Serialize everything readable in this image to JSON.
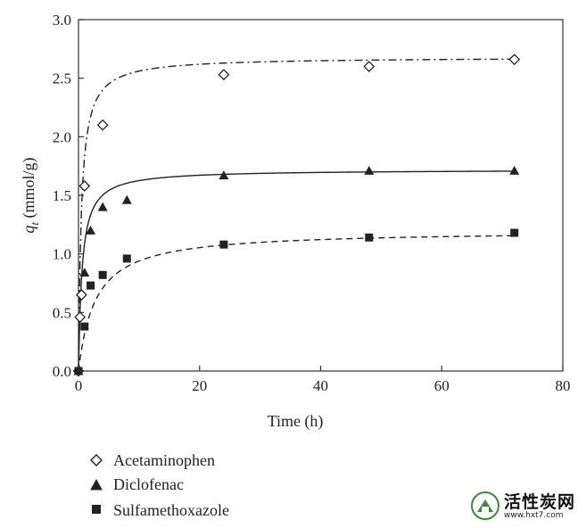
{
  "chart_data": {
    "type": "scatter",
    "xlabel": "Time (h)",
    "ylabel_main": "q",
    "ylabel_sub": "t",
    "ylabel_unit": " (mmol/g)",
    "xlim": [
      0,
      80
    ],
    "ylim": [
      0,
      3.0
    ],
    "xticks": [
      "0",
      "20",
      "40",
      "60",
      "80"
    ],
    "yticks": [
      "0.0",
      "0.5",
      "1.0",
      "1.5",
      "2.0",
      "2.5",
      "3.0"
    ],
    "legend_position": "bottom-left, below plot",
    "grid": false,
    "series": [
      {
        "name": "Acetaminophen",
        "marker": "open-diamond",
        "line_style": "dash-dot",
        "x": [
          0,
          0.25,
          0.5,
          1,
          4,
          24,
          48,
          72
        ],
        "y": [
          0.0,
          0.46,
          0.65,
          1.58,
          2.1,
          2.53,
          2.6,
          2.66
        ],
        "fit": {
          "qe": 2.68,
          "k": 0.8
        }
      },
      {
        "name": "Diclofenac",
        "marker": "filled-triangle",
        "line_style": "solid",
        "x": [
          0,
          1,
          2,
          4,
          8,
          24,
          48,
          72
        ],
        "y": [
          0.0,
          0.84,
          1.2,
          1.4,
          1.46,
          1.67,
          1.71,
          1.71
        ],
        "fit": {
          "qe": 1.72,
          "k": 1.0
        }
      },
      {
        "name": "Sulfamethoxazole",
        "marker": "filled-square",
        "line_style": "dashed",
        "x": [
          0,
          1,
          2,
          4,
          8,
          24,
          48,
          72
        ],
        "y": [
          0.0,
          0.38,
          0.73,
          0.82,
          0.96,
          1.08,
          1.14,
          1.18
        ],
        "fit": {
          "qe": 1.2,
          "k": 0.3
        }
      }
    ]
  },
  "watermark": {
    "title": "活性炭网",
    "url": "www.hxt7.com"
  }
}
